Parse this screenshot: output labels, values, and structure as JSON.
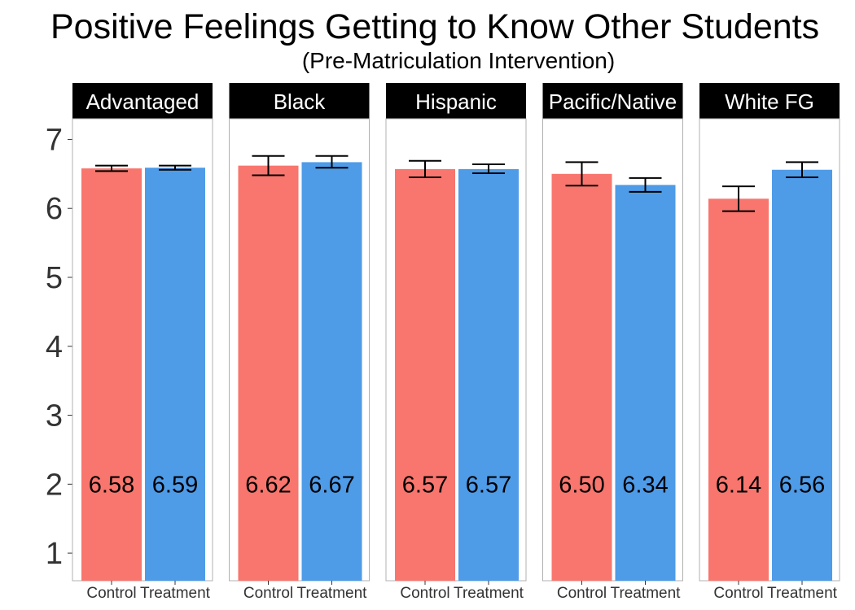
{
  "chart_data": {
    "type": "bar",
    "title": "Positive Feelings Getting to Know Other Students",
    "subtitle": "(Pre-Matriculation Intervention)",
    "xlabel": "",
    "ylabel": "",
    "ylim": [
      0.6,
      7.3
    ],
    "yticks": [
      1,
      2,
      3,
      4,
      5,
      6,
      7
    ],
    "grid": false,
    "legend": "none",
    "categories": [
      "Control",
      "Treatment"
    ],
    "colors": {
      "Control": "#F8766D",
      "Treatment": "#4E9BE8"
    },
    "value_label_y": 2,
    "panels": [
      {
        "name": "Advantaged",
        "values": [
          6.58,
          6.59
        ],
        "labels": [
          "6.58",
          "6.59"
        ],
        "err_low": [
          6.54,
          6.56
        ],
        "err_high": [
          6.62,
          6.62
        ]
      },
      {
        "name": "Black",
        "values": [
          6.62,
          6.67
        ],
        "labels": [
          "6.62",
          "6.67"
        ],
        "err_low": [
          6.48,
          6.59
        ],
        "err_high": [
          6.76,
          6.76
        ]
      },
      {
        "name": "Hispanic",
        "values": [
          6.57,
          6.57
        ],
        "labels": [
          "6.57",
          "6.57"
        ],
        "err_low": [
          6.45,
          6.51
        ],
        "err_high": [
          6.69,
          6.64
        ]
      },
      {
        "name": "Pacific/Native",
        "values": [
          6.5,
          6.34
        ],
        "labels": [
          "6.50",
          "6.34"
        ],
        "err_low": [
          6.33,
          6.24
        ],
        "err_high": [
          6.67,
          6.44
        ]
      },
      {
        "name": "White FG",
        "values": [
          6.14,
          6.56
        ],
        "labels": [
          "6.14",
          "6.56"
        ],
        "err_low": [
          5.96,
          6.45
        ],
        "err_high": [
          6.32,
          6.67
        ]
      }
    ]
  }
}
